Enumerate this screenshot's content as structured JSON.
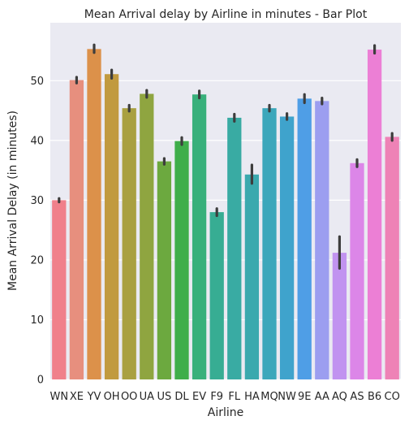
{
  "chart_data": {
    "type": "bar",
    "title": "Mean Arrival delay by Airline in minutes - Bar Plot",
    "xlabel": "Airline",
    "ylabel": "Mean Arrival Delay (in minutes)",
    "ylim": [
      0,
      59.7
    ],
    "yticks": [
      0,
      10,
      20,
      30,
      40,
      50
    ],
    "grid": true,
    "categories": [
      "WN",
      "XE",
      "YV",
      "OH",
      "OO",
      "UA",
      "US",
      "DL",
      "EV",
      "F9",
      "FL",
      "HA",
      "MQ",
      "NW",
      "9E",
      "AA",
      "AQ",
      "AS",
      "B6",
      "CO"
    ],
    "values": [
      30.0,
      50.1,
      55.3,
      51.1,
      45.4,
      47.8,
      36.5,
      39.9,
      47.7,
      28.0,
      43.8,
      34.3,
      45.4,
      44.0,
      47.0,
      46.6,
      21.2,
      36.2,
      55.2,
      40.6
    ],
    "ci_low": [
      29.7,
      49.6,
      54.7,
      50.4,
      44.9,
      47.2,
      36.0,
      39.3,
      47.1,
      27.4,
      43.2,
      32.8,
      44.9,
      43.5,
      46.3,
      46.1,
      18.6,
      35.6,
      54.6,
      40.0
    ],
    "ci_high": [
      30.3,
      50.6,
      56.0,
      51.8,
      45.9,
      48.4,
      37.0,
      40.5,
      48.3,
      28.6,
      44.4,
      35.9,
      45.9,
      44.5,
      47.7,
      47.1,
      23.9,
      36.8,
      55.9,
      41.2
    ],
    "colors": [
      "#f0808b",
      "#e78f7e",
      "#dc914a",
      "#c19a3f",
      "#a9a041",
      "#8fa540",
      "#6ca93f",
      "#3fae4a",
      "#38b07b",
      "#37ad93",
      "#39aba3",
      "#3aa9ae",
      "#3ca7bb",
      "#3fa3cc",
      "#4f9ee6",
      "#9c9ef0",
      "#c193f0",
      "#dc86e8",
      "#ec7fd5",
      "#ee82b6"
    ]
  }
}
